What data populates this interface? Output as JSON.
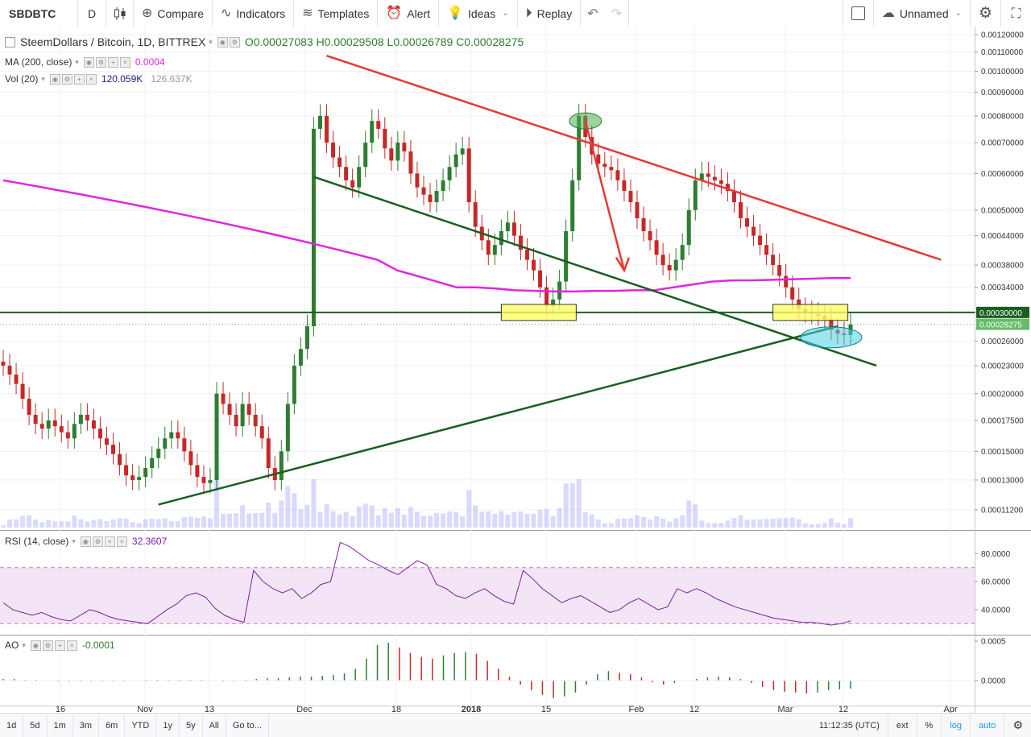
{
  "toolbar": {
    "symbol": "SBDBTC",
    "interval": "D",
    "compare": "Compare",
    "indicators": "Indicators",
    "templates": "Templates",
    "alert": "Alert",
    "ideas": "Ideas",
    "replay": "Replay",
    "layout_name": "Unnamed"
  },
  "legend": {
    "title": "SteemDollars / Bitcoin, 1D, BITTREX",
    "ohlc": "O0.00027083 H0.00029508 L0.00026789 C0.00028275",
    "ma_label": "MA (200, close)",
    "ma_value": "0.0004",
    "vol_label": "Vol (20)",
    "vol_value1": "120.059K",
    "vol_value2": "126.637K",
    "rsi_label": "RSI (14, close)",
    "rsi_value": "32.3607",
    "ao_label": "AO",
    "ao_value": "-0.0001"
  },
  "bottom": {
    "ranges": [
      "1d",
      "5d",
      "1m",
      "3m",
      "6m",
      "YTD",
      "1y",
      "5y",
      "All",
      "Go to..."
    ],
    "time": "11:12:35 (UTC)",
    "ext": "ext",
    "pct": "%",
    "log": "log",
    "auto": "auto"
  },
  "colors": {
    "up": "#2e7d32",
    "down": "#c62828",
    "ma": "#e026e0",
    "rsi": "#7b1fa2",
    "support": "#1b5e20",
    "resistance": "#e53935"
  },
  "chart_data": {
    "type": "candlestick",
    "title": "SteemDollars / Bitcoin, 1D, BITTREX",
    "price_axis_labels": [
      "0.00120000",
      "0.00110000",
      "0.00100000",
      "0.00090000",
      "0.00080000",
      "0.00070000",
      "0.00060000",
      "0.00050000",
      "0.00044000",
      "0.00038000",
      "0.00034000",
      "0.00030000",
      "0.00026000",
      "0.00023000",
      "0.00020000",
      "0.00017500",
      "0.00015000",
      "0.00013000",
      "0.00011200"
    ],
    "last_price": "0.00028275",
    "level_label": "0.00030000",
    "x_tick_labels": [
      "16",
      "Nov",
      "13",
      "Dec",
      "18",
      "2018",
      "15",
      "Feb",
      "12",
      "Mar",
      "12",
      "Apr"
    ],
    "rsi_axis": [
      "80.0000",
      "60.0000",
      "40.0000"
    ],
    "ao_axis": [
      "0.0005",
      "0.0000"
    ],
    "close_series_approx": [
      0.00023,
      0.00022,
      0.00021,
      0.000195,
      0.00018,
      0.000172,
      0.000168,
      0.000175,
      0.00017,
      0.000165,
      0.00016,
      0.000172,
      0.00018,
      0.000175,
      0.000168,
      0.00016,
      0.000155,
      0.000148,
      0.00014,
      0.000133,
      0.00013,
      0.000132,
      0.000138,
      0.000145,
      0.000152,
      0.00016,
      0.000165,
      0.00016,
      0.00015,
      0.00014,
      0.000132,
      0.000128,
      0.00013,
      0.0002,
      0.00019,
      0.00018,
      0.00017,
      0.00019,
      0.00018,
      0.00017,
      0.00016,
      0.000138,
      0.00013,
      0.00015,
      0.00019,
      0.00023,
      0.00025,
      0.00028,
      0.00075,
      0.0008,
      0.0007,
      0.00065,
      0.00062,
      0.00058,
      0.00056,
      0.00062,
      0.0007,
      0.00078,
      0.00075,
      0.00068,
      0.00064,
      0.0007,
      0.00067,
      0.0006,
      0.00056,
      0.00054,
      0.00052,
      0.00055,
      0.00058,
      0.00062,
      0.00066,
      0.00068,
      0.00052,
      0.00046,
      0.00043,
      0.0004,
      0.00042,
      0.00045,
      0.00047,
      0.00044,
      0.00041,
      0.00039,
      0.00037,
      0.00034,
      0.00031,
      0.00032,
      0.00035,
      0.00045,
      0.00058,
      0.0008,
      0.00072,
      0.00066,
      0.00063,
      0.00062,
      0.00061,
      0.00058,
      0.00055,
      0.00052,
      0.00048,
      0.00045,
      0.00043,
      0.0004,
      0.00038,
      0.00037,
      0.00039,
      0.00042,
      0.0005,
      0.00058,
      0.0006,
      0.00059,
      0.00058,
      0.00057,
      0.00055,
      0.00052,
      0.00048,
      0.00046,
      0.00044,
      0.00042,
      0.0004,
      0.00038,
      0.00036,
      0.00034,
      0.00032,
      0.000305,
      0.0003,
      0.000298,
      0.000295,
      0.00029,
      0.000275,
      0.00027,
      0.000268,
      0.00028275
    ],
    "ma200_series_approx": [
      0.00058,
      0.00057,
      0.00056,
      0.00055,
      0.00054,
      0.00053,
      0.00052,
      0.00051,
      0.0005,
      0.00049,
      0.00048,
      0.00047,
      0.00046,
      0.00045,
      0.00044,
      0.00043,
      0.00042,
      0.00041,
      0.0004,
      0.00039,
      0.00037,
      0.00036,
      0.00035,
      0.00034,
      0.00034,
      0.000338,
      0.000335,
      0.000334,
      0.000333,
      0.000333,
      0.000334,
      0.000334,
      0.000335,
      0.000335,
      0.00034,
      0.000345,
      0.00035,
      0.000352,
      0.000352,
      0.000353,
      0.000354,
      0.000355,
      0.000356,
      0.000356
    ],
    "rsi_series_approx": [
      45,
      40,
      38,
      36,
      38,
      35,
      33,
      32,
      36,
      40,
      38,
      35,
      33,
      32,
      31,
      30,
      35,
      40,
      44,
      50,
      52,
      49,
      41,
      36,
      33,
      31,
      68,
      60,
      55,
      52,
      55,
      48,
      52,
      58,
      60,
      88,
      85,
      80,
      75,
      72,
      68,
      65,
      70,
      75,
      72,
      58,
      55,
      50,
      48,
      52,
      55,
      50,
      46,
      44,
      68,
      62,
      55,
      50,
      45,
      48,
      50,
      46,
      42,
      38,
      40,
      45,
      48,
      44,
      40,
      42,
      55,
      52,
      55,
      52,
      48,
      45,
      42,
      40,
      38,
      36,
      34,
      33,
      32,
      31,
      31,
      30,
      29,
      30,
      32
    ],
    "ao_series_approx": [
      2e-05,
      2e-05,
      1e-05,
      1e-05,
      0.0,
      -1e-05,
      -1e-05,
      -1e-05,
      -1e-05,
      -1e-05,
      -1e-05,
      -1e-05,
      0.0,
      1e-05,
      1e-05,
      1e-05,
      1e-05,
      1e-05,
      1e-05,
      0.0,
      -1e-05,
      -1e-05,
      1e-05,
      2e-05,
      3e-05,
      3e-05,
      4e-05,
      5e-05,
      5e-05,
      6e-05,
      7e-05,
      9e-05,
      0.00015,
      0.00028,
      0.00045,
      0.00048,
      0.00042,
      0.00035,
      0.0003,
      0.00028,
      0.00032,
      0.00035,
      0.00036,
      0.00034,
      0.00025,
      0.00015,
      5e-05,
      -5e-05,
      -0.00012,
      -0.00018,
      -0.00022,
      -0.0002,
      -0.00015,
      -5e-05,
      8e-05,
      0.00012,
      0.0001,
      8e-05,
      4e-05,
      -2e-05,
      -5e-05,
      -3e-05,
      0.0,
      2e-05,
      4e-05,
      5e-05,
      4e-05,
      2e-05,
      -3e-05,
      -8e-05,
      -0.00012,
      -0.00014,
      -0.00015,
      -0.00016,
      -0.00015,
      -0.00012,
      -0.00011,
      -0.0001
    ]
  }
}
